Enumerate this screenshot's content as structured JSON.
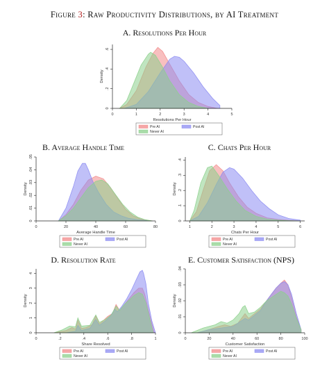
{
  "figure": {
    "label": "Figure",
    "number": "3",
    "title": "Raw Productivity Distributions, by AI Treatment"
  },
  "legend_labels": [
    "Pre AI",
    "Post AI",
    "Never AI"
  ],
  "colors": {
    "pre_ai": "#f28a8a",
    "post_ai": "#8c8cf2",
    "never_ai": "#8cd08c",
    "overlap_all": "#5f6b6b"
  },
  "chart_data": [
    {
      "id": "A",
      "type": "area",
      "title": "A. Resolutions Per Hour",
      "xlabel": "Resolutions Per Hour",
      "ylabel": "Density",
      "xlim": [
        0,
        5
      ],
      "ylim": [
        0,
        0.65
      ],
      "xticks": [
        0,
        1,
        2,
        3,
        4,
        5
      ],
      "yticks": [
        0,
        0.2,
        0.4,
        0.6
      ],
      "ytick_labels": [
        "0",
        ".2",
        ".4",
        ".6"
      ],
      "legend": "bottom",
      "series": [
        {
          "name": "Pre AI",
          "x": [
            0.3,
            0.6,
            1.0,
            1.4,
            1.7,
            1.9,
            2.1,
            2.4,
            2.8,
            3.2,
            3.6,
            4.0,
            4.4
          ],
          "y": [
            0,
            0.04,
            0.18,
            0.42,
            0.56,
            0.62,
            0.58,
            0.45,
            0.28,
            0.14,
            0.06,
            0.02,
            0
          ]
        },
        {
          "name": "Post AI",
          "x": [
            0.5,
            1.0,
            1.5,
            2.0,
            2.4,
            2.6,
            2.8,
            3.0,
            3.4,
            3.8,
            4.2,
            4.5
          ],
          "y": [
            0,
            0.04,
            0.17,
            0.36,
            0.5,
            0.53,
            0.52,
            0.48,
            0.36,
            0.22,
            0.1,
            0.03
          ]
        },
        {
          "name": "Never AI",
          "x": [
            0.3,
            0.6,
            0.9,
            1.2,
            1.5,
            1.6,
            1.8,
            2.1,
            2.4,
            2.8,
            3.2,
            3.6,
            4.0
          ],
          "y": [
            0,
            0.08,
            0.26,
            0.44,
            0.55,
            0.57,
            0.54,
            0.42,
            0.28,
            0.14,
            0.06,
            0.02,
            0
          ]
        }
      ]
    },
    {
      "id": "B",
      "type": "area",
      "title": "B. Average Handle Time",
      "xlabel": "Average Handle Time",
      "ylabel": "Density",
      "xlim": [
        0,
        80
      ],
      "ylim": [
        0,
        0.05
      ],
      "xticks": [
        0,
        20,
        40,
        60,
        80
      ],
      "yticks": [
        0,
        0.01,
        0.02,
        0.03,
        0.04,
        0.05
      ],
      "ytick_labels": [
        "0",
        ".01",
        ".02",
        ".03",
        ".04",
        ".05"
      ],
      "legend": "bottom",
      "series": [
        {
          "name": "Pre AI",
          "x": [
            15,
            20,
            25,
            30,
            35,
            40,
            45,
            50,
            55,
            60,
            65,
            70,
            75,
            78
          ],
          "y": [
            0,
            0.005,
            0.013,
            0.024,
            0.032,
            0.035,
            0.033,
            0.026,
            0.017,
            0.009,
            0.004,
            0.0015,
            0.0005,
            0
          ]
        },
        {
          "name": "Post AI",
          "x": [
            15,
            20,
            25,
            28,
            31,
            33,
            35,
            38,
            42,
            47,
            52,
            57,
            62,
            68,
            74,
            78
          ],
          "y": [
            0,
            0.01,
            0.027,
            0.039,
            0.045,
            0.045,
            0.04,
            0.031,
            0.022,
            0.013,
            0.007,
            0.004,
            0.002,
            0.001,
            0.0003,
            0
          ]
        },
        {
          "name": "Never AI",
          "x": [
            15,
            20,
            25,
            30,
            35,
            40,
            44,
            48,
            53,
            58,
            63,
            68,
            73,
            78
          ],
          "y": [
            0,
            0.004,
            0.01,
            0.018,
            0.026,
            0.031,
            0.032,
            0.029,
            0.021,
            0.013,
            0.007,
            0.003,
            0.001,
            0
          ]
        }
      ]
    },
    {
      "id": "C",
      "type": "area",
      "title": "C. Chats Per Hour",
      "xlabel": "Chats Per Hour",
      "ylabel": "Density",
      "xlim": [
        0.8,
        6.2
      ],
      "ylim": [
        0,
        0.42
      ],
      "xticks": [
        1,
        2,
        3,
        4,
        5,
        6
      ],
      "yticks": [
        0,
        0.1,
        0.2,
        0.3,
        0.4
      ],
      "ytick_labels": [
        "0",
        ".1",
        ".2",
        ".3",
        ".4"
      ],
      "legend": "bottom",
      "series": [
        {
          "name": "Pre AI",
          "x": [
            1.0,
            1.3,
            1.6,
            1.9,
            2.2,
            2.5,
            2.8,
            3.2,
            3.6,
            4.0,
            4.5,
            5.0,
            5.5,
            6.0
          ],
          "y": [
            0,
            0.06,
            0.2,
            0.33,
            0.37,
            0.33,
            0.25,
            0.16,
            0.09,
            0.05,
            0.02,
            0.01,
            0.004,
            0
          ]
        },
        {
          "name": "Post AI",
          "x": [
            1.0,
            1.4,
            1.8,
            2.2,
            2.5,
            2.8,
            3.0,
            3.4,
            3.8,
            4.2,
            4.6,
            5.0,
            5.5,
            6.0
          ],
          "y": [
            0,
            0.03,
            0.12,
            0.24,
            0.32,
            0.35,
            0.34,
            0.28,
            0.2,
            0.13,
            0.08,
            0.04,
            0.015,
            0.005
          ]
        },
        {
          "name": "Never AI",
          "x": [
            1.0,
            1.2,
            1.5,
            1.8,
            2.0,
            2.3,
            2.7,
            3.1,
            3.5,
            4.0,
            4.5,
            5.0,
            5.5,
            6.0
          ],
          "y": [
            0,
            0.07,
            0.25,
            0.35,
            0.36,
            0.3,
            0.21,
            0.13,
            0.07,
            0.03,
            0.012,
            0.005,
            0.002,
            0
          ]
        }
      ]
    },
    {
      "id": "D",
      "type": "area",
      "title": "D. Resolution Rate",
      "xlabel": "Share Resolved",
      "ylabel": "Density",
      "xlim": [
        0,
        1
      ],
      "ylim": [
        0,
        4.3
      ],
      "xticks": [
        0,
        0.2,
        0.4,
        0.6,
        0.8,
        1
      ],
      "xtick_labels": [
        "0",
        ".2",
        ".4",
        ".6",
        ".8",
        "1"
      ],
      "yticks": [
        0,
        1,
        2,
        3,
        4
      ],
      "legend": "bottom",
      "series": [
        {
          "name": "Pre AI",
          "x": [
            0.15,
            0.25,
            0.3,
            0.33,
            0.35,
            0.38,
            0.42,
            0.47,
            0.5,
            0.53,
            0.56,
            0.6,
            0.64,
            0.67,
            0.7,
            0.74,
            0.78,
            0.82,
            0.86,
            0.89,
            0.91,
            0.93,
            0.96,
            0.99
          ],
          "y": [
            0,
            0.15,
            0.35,
            0.25,
            0.85,
            0.3,
            0.35,
            0.55,
            1.15,
            0.6,
            0.8,
            1.1,
            1.3,
            1.9,
            1.5,
            1.9,
            2.3,
            2.7,
            3.0,
            3.0,
            2.6,
            1.9,
            0.9,
            0
          ]
        },
        {
          "name": "Post AI",
          "x": [
            0.25,
            0.33,
            0.35,
            0.38,
            0.45,
            0.5,
            0.53,
            0.58,
            0.62,
            0.66,
            0.68,
            0.72,
            0.76,
            0.8,
            0.84,
            0.87,
            0.89,
            0.9,
            0.92,
            0.94,
            0.97,
            1.0
          ],
          "y": [
            0,
            0.1,
            0.5,
            0.15,
            0.3,
            0.9,
            0.5,
            0.8,
            1.1,
            1.6,
            1.4,
            1.8,
            2.3,
            2.9,
            3.6,
            4.1,
            4.2,
            4.0,
            3.3,
            2.0,
            0.8,
            0
          ]
        },
        {
          "name": "Never AI",
          "x": [
            0.15,
            0.22,
            0.28,
            0.33,
            0.35,
            0.38,
            0.45,
            0.5,
            0.53,
            0.58,
            0.63,
            0.67,
            0.7,
            0.74,
            0.78,
            0.82,
            0.86,
            0.89,
            0.92,
            0.95,
            0.98
          ],
          "y": [
            0,
            0.2,
            0.45,
            0.4,
            1.0,
            0.45,
            0.5,
            1.2,
            0.7,
            0.9,
            1.2,
            1.8,
            1.5,
            1.9,
            2.2,
            2.5,
            2.7,
            2.6,
            2.0,
            1.0,
            0
          ]
        }
      ]
    },
    {
      "id": "E",
      "type": "area",
      "title": "E. Customer Satisfaction (NPS)",
      "xlabel": "Customer Satisfaction",
      "ylabel": "Density",
      "xlim": [
        0,
        100
      ],
      "ylim": [
        0,
        0.04
      ],
      "xticks": [
        0,
        20,
        40,
        60,
        80,
        100
      ],
      "yticks": [
        0,
        0.01,
        0.02,
        0.03,
        0.04
      ],
      "ytick_labels": [
        "0",
        ".01",
        ".02",
        ".03",
        ".04"
      ],
      "legend": "bottom",
      "series": [
        {
          "name": "Pre AI",
          "x": [
            10,
            20,
            28,
            33,
            38,
            44,
            48,
            50,
            53,
            58,
            63,
            68,
            72,
            76,
            80,
            83,
            86,
            89,
            93,
            97
          ],
          "y": [
            0,
            0.002,
            0.004,
            0.005,
            0.004,
            0.006,
            0.01,
            0.012,
            0.009,
            0.012,
            0.015,
            0.02,
            0.024,
            0.028,
            0.031,
            0.033,
            0.03,
            0.022,
            0.01,
            0.002
          ]
        },
        {
          "name": "Post AI",
          "x": [
            10,
            20,
            30,
            40,
            48,
            50,
            53,
            58,
            63,
            68,
            72,
            76,
            80,
            83,
            86,
            89,
            93,
            97
          ],
          "y": [
            0,
            0.002,
            0.003,
            0.004,
            0.008,
            0.009,
            0.008,
            0.011,
            0.014,
            0.02,
            0.024,
            0.028,
            0.031,
            0.032,
            0.03,
            0.024,
            0.012,
            0.002
          ]
        },
        {
          "name": "Never AI",
          "x": [
            5,
            15,
            25,
            30,
            35,
            40,
            45,
            48,
            50,
            53,
            58,
            63,
            68,
            72,
            76,
            80,
            83,
            86,
            89,
            93,
            97
          ],
          "y": [
            0,
            0.003,
            0.005,
            0.007,
            0.006,
            0.008,
            0.012,
            0.016,
            0.017,
            0.012,
            0.013,
            0.016,
            0.02,
            0.022,
            0.024,
            0.026,
            0.025,
            0.023,
            0.018,
            0.009,
            0.002
          ]
        }
      ]
    }
  ]
}
